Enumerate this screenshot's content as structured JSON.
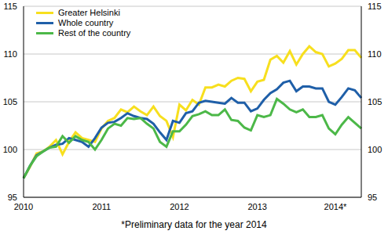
{
  "chart_data": {
    "type": "line",
    "annotations": [
      "*Preliminary data for the year 2014"
    ],
    "categories": [
      "2010",
      null,
      null,
      null,
      null,
      null,
      null,
      null,
      null,
      null,
      null,
      null,
      "2011",
      null,
      null,
      null,
      null,
      null,
      null,
      null,
      null,
      null,
      null,
      null,
      "2012",
      null,
      null,
      null,
      null,
      null,
      null,
      null,
      null,
      null,
      null,
      null,
      "2013",
      null,
      null,
      null,
      null,
      null,
      null,
      null,
      null,
      null,
      null,
      null,
      "2014*",
      null,
      null,
      null,
      null
    ],
    "series": [
      {
        "name": "Greater Helsinki",
        "color": "#f7df1e",
        "values": [
          97.0,
          98.2,
          99.6,
          99.8,
          100.3,
          101.0,
          99.5,
          100.8,
          101.8,
          101.2,
          101.0,
          100.8,
          102.2,
          103.0,
          103.3,
          104.2,
          103.9,
          104.5,
          104.0,
          103.6,
          104.5,
          103.5,
          103.0,
          101.3,
          104.7,
          104.1,
          105.2,
          104.7,
          106.5,
          106.5,
          106.8,
          106.6,
          107.2,
          107.5,
          107.4,
          106.1,
          107.1,
          107.3,
          109.4,
          109.8,
          109.1,
          110.3,
          108.9,
          110.0,
          110.8,
          110.2,
          110.0,
          108.7,
          109.0,
          109.5,
          110.4,
          110.4,
          109.6
        ]
      },
      {
        "name": "Whole country",
        "color": "#1f5fa8",
        "values": [
          97.0,
          98.3,
          99.4,
          99.8,
          100.2,
          100.5,
          100.6,
          101.2,
          101.0,
          100.8,
          100.3,
          101.2,
          102.3,
          102.8,
          102.9,
          103.3,
          103.8,
          103.5,
          103.3,
          103.2,
          102.7,
          101.8,
          101.0,
          103.0,
          102.8,
          103.8,
          104.0,
          104.9,
          105.1,
          105.0,
          104.9,
          104.8,
          105.4,
          104.9,
          104.9,
          104.0,
          104.3,
          105.2,
          105.9,
          106.3,
          107.0,
          107.2,
          106.1,
          106.6,
          106.6,
          106.4,
          106.4,
          105.0,
          104.7,
          105.5,
          106.4,
          106.2,
          105.4
        ]
      },
      {
        "name": "Rest of the country",
        "color": "#4cb848",
        "values": [
          97.0,
          98.3,
          99.3,
          99.8,
          100.2,
          100.3,
          101.4,
          100.7,
          101.4,
          101.0,
          100.8,
          100.0,
          101.0,
          102.2,
          102.7,
          102.5,
          103.3,
          103.2,
          103.3,
          102.7,
          102.2,
          100.8,
          100.3,
          101.9,
          101.9,
          102.6,
          103.5,
          103.7,
          104.0,
          103.6,
          103.6,
          104.2,
          103.1,
          103.0,
          102.3,
          102.0,
          103.6,
          103.4,
          103.6,
          105.3,
          104.8,
          104.2,
          103.9,
          104.2,
          103.4,
          103.4,
          103.6,
          102.2,
          101.6,
          102.6,
          103.4,
          102.8,
          102.2
        ]
      }
    ],
    "ylim": [
      95,
      115
    ],
    "yticks": [
      95,
      100,
      105,
      110,
      115
    ],
    "y2lim": [
      95,
      115
    ],
    "y2ticks": [
      95,
      100,
      105,
      110,
      115
    ],
    "grid": true,
    "legend": "upper left"
  }
}
